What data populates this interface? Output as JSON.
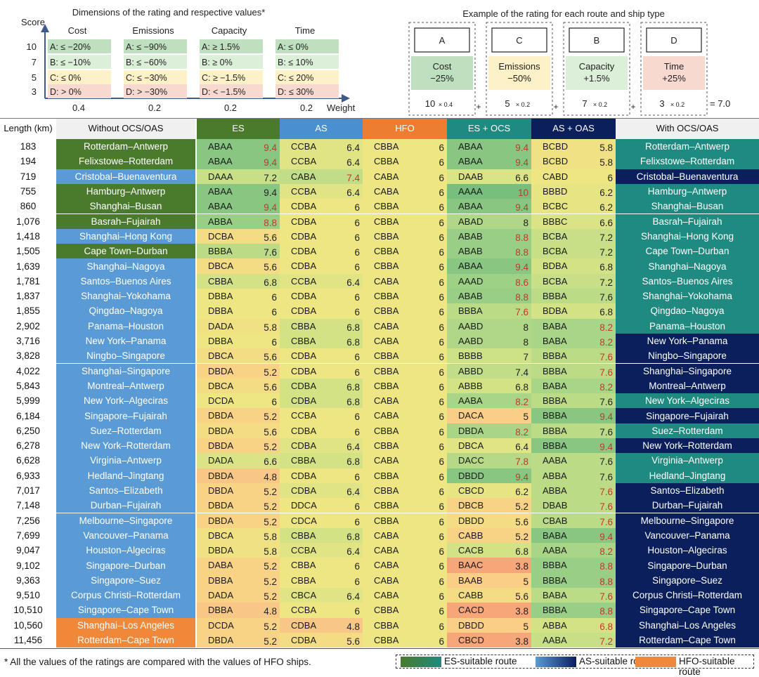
{
  "chart_data": {
    "type": "table",
    "top_left": {
      "title": "Dimensions of the rating and respective values*",
      "y_axis_label": "Score",
      "x_axis_label": "Weight",
      "scores": [
        "10",
        "7",
        "5",
        "3"
      ],
      "dimensions": [
        {
          "name": "Cost",
          "weight": "0.4",
          "grades": [
            "A: ≤ −20%",
            "B: ≤ −10%",
            "C: ≤ 0%",
            "D: > 0%"
          ]
        },
        {
          "name": "Emissions",
          "weight": "0.2",
          "grades": [
            "A: ≤ −90%",
            "B: ≤ −60%",
            "C: ≤ −30%",
            "D: > −30%"
          ]
        },
        {
          "name": "Capacity",
          "weight": "0.2",
          "grades": [
            "A: ≥ 1.5%",
            "B: ≥ 0%",
            "C: ≥ −1.5%",
            "D: < −1.5%"
          ]
        },
        {
          "name": "Time",
          "weight": "0.2",
          "grades": [
            "A: ≤ 0%",
            "B: ≤ 10%",
            "C: ≤ 20%",
            "D: ≤ 30%"
          ]
        }
      ]
    },
    "example": {
      "title": "Example of the rating for each route and ship type",
      "boxes": [
        {
          "grade": "A",
          "dim": "Cost",
          "value": "−25%",
          "score": "10",
          "weight": "× 0.4"
        },
        {
          "grade": "C",
          "dim": "Emissions",
          "value": "−50%",
          "score": "5",
          "weight": "× 0.2"
        },
        {
          "grade": "B",
          "dim": "Capacity",
          "value": "+1.5%",
          "score": "7",
          "weight": "× 0.2"
        },
        {
          "grade": "D",
          "dim": "Time",
          "value": "+25%",
          "score": "3",
          "weight": "× 0.2"
        }
      ],
      "plus": "+",
      "result": "= 7.0"
    },
    "columns": [
      "Length (km)",
      "Without OCS/OAS",
      "ES",
      "AS",
      "HFO",
      "ES + OCS",
      "AS + OAS",
      "With OCS/OAS"
    ],
    "rows": [
      {
        "len": "183",
        "route": "Rotterdam–Antwerp",
        "left": "ES",
        "right": "ES",
        "es": [
          "ABAA",
          "9.4"
        ],
        "as": [
          "CCBA",
          "6.4"
        ],
        "hfo": [
          "CBBA",
          "6"
        ],
        "esocs": [
          "ABAA",
          "9.4"
        ],
        "asoas": [
          "BCBD",
          "5.8"
        ]
      },
      {
        "len": "194",
        "route": "Felixstowe–Rotterdam",
        "left": "ES",
        "right": "ES",
        "es": [
          "ABAA",
          "9.4"
        ],
        "as": [
          "CCBA",
          "6.4"
        ],
        "hfo": [
          "CBBA",
          "6"
        ],
        "esocs": [
          "ABAA",
          "9.4"
        ],
        "asoas": [
          "BCBD",
          "5.8"
        ]
      },
      {
        "len": "719",
        "route": "Cristobal–Buenaventura",
        "left": "AS",
        "right": "AS",
        "es": [
          "DAAA",
          "7.2"
        ],
        "as": [
          "CABA",
          "7.4"
        ],
        "hfo": [
          "CABA",
          "6"
        ],
        "esocs": [
          "DAAB",
          "6.6"
        ],
        "asoas": [
          "CABD",
          "6"
        ]
      },
      {
        "len": "755",
        "route": "Hamburg–Antwerp",
        "left": "ES",
        "right": "ES",
        "es": [
          "ABAA",
          "9.4"
        ],
        "as": [
          "CCBA",
          "6.4"
        ],
        "hfo": [
          "CABA",
          "6"
        ],
        "esocs": [
          "AAAA",
          "10"
        ],
        "asoas": [
          "BBBD",
          "6.2"
        ]
      },
      {
        "len": "860",
        "route": "Shanghai–Busan",
        "left": "ES",
        "right": "ES",
        "es": [
          "ABAA",
          "9.4"
        ],
        "as": [
          "CDBA",
          "6"
        ],
        "hfo": [
          "CBBA",
          "6"
        ],
        "esocs": [
          "ABAA",
          "9.4"
        ],
        "asoas": [
          "BCBC",
          "6.2"
        ]
      },
      {
        "len": "1,076",
        "route": "Basrah–Fujairah",
        "left": "ES",
        "right": "ES",
        "es": [
          "ABBA",
          "8.8"
        ],
        "as": [
          "CDBA",
          "6"
        ],
        "hfo": [
          "CBBA",
          "6"
        ],
        "esocs": [
          "ABAD",
          "8"
        ],
        "asoas": [
          "BBBC",
          "6.6"
        ]
      },
      {
        "len": "1,418",
        "route": "Shanghai–Hong Kong",
        "left": "AS",
        "right": "ES",
        "es": [
          "DCBA",
          "5.6"
        ],
        "as": [
          "CDBA",
          "6"
        ],
        "hfo": [
          "CBBA",
          "6"
        ],
        "esocs": [
          "ABAB",
          "8.8"
        ],
        "asoas": [
          "BCBA",
          "7.2"
        ]
      },
      {
        "len": "1,505",
        "route": "Cape Town–Durban",
        "left": "ES",
        "right": "ES",
        "es": [
          "BBBA",
          "7.6"
        ],
        "as": [
          "CDBA",
          "6"
        ],
        "hfo": [
          "CBBA",
          "6"
        ],
        "esocs": [
          "ABAB",
          "8.8"
        ],
        "asoas": [
          "BCBA",
          "7.2"
        ]
      },
      {
        "len": "1,639",
        "route": "Shanghai–Nagoya",
        "left": "AS",
        "right": "ES",
        "es": [
          "DBCA",
          "5.6"
        ],
        "as": [
          "CDBA",
          "6"
        ],
        "hfo": [
          "CBBA",
          "6"
        ],
        "esocs": [
          "ABAA",
          "9.4"
        ],
        "asoas": [
          "BDBA",
          "6.8"
        ]
      },
      {
        "len": "1,781",
        "route": "Santos–Buenos Aires",
        "left": "AS",
        "right": "ES",
        "es": [
          "CBBA",
          "6.8"
        ],
        "as": [
          "CCBA",
          "6.4"
        ],
        "hfo": [
          "CABA",
          "6"
        ],
        "esocs": [
          "AAAD",
          "8.6"
        ],
        "asoas": [
          "BCBA",
          "7.2"
        ]
      },
      {
        "len": "1,837",
        "route": "Shanghai–Yokohama",
        "left": "AS",
        "right": "ES",
        "es": [
          "DBBA",
          "6"
        ],
        "as": [
          "CDBA",
          "6"
        ],
        "hfo": [
          "CBBA",
          "6"
        ],
        "esocs": [
          "ABAB",
          "8.8"
        ],
        "asoas": [
          "BBBA",
          "7.6"
        ]
      },
      {
        "len": "1,855",
        "route": "Qingdao–Nagoya",
        "left": "AS",
        "right": "ES",
        "es": [
          "DBBA",
          "6"
        ],
        "as": [
          "CDBA",
          "6"
        ],
        "hfo": [
          "CBBA",
          "6"
        ],
        "esocs": [
          "BBBA",
          "7.6"
        ],
        "asoas": [
          "BDBA",
          "6.8"
        ]
      },
      {
        "len": "2,902",
        "route": "Panama–Houston",
        "left": "AS",
        "right": "ES",
        "es": [
          "DADA",
          "5.8"
        ],
        "as": [
          "CBBA",
          "6.8"
        ],
        "hfo": [
          "CABA",
          "6"
        ],
        "esocs": [
          "AABD",
          "8"
        ],
        "asoas": [
          "BABA",
          "8.2"
        ]
      },
      {
        "len": "3,716",
        "route": "New York–Panama",
        "left": "AS",
        "right": "AS",
        "es": [
          "DBBA",
          "6"
        ],
        "as": [
          "CBBA",
          "6.8"
        ],
        "hfo": [
          "CABA",
          "6"
        ],
        "esocs": [
          "AABD",
          "8"
        ],
        "asoas": [
          "BABA",
          "8.2"
        ]
      },
      {
        "len": "3,828",
        "route": "Ningbo–Singapore",
        "left": "AS",
        "right": "AS",
        "es": [
          "DBCA",
          "5.6"
        ],
        "as": [
          "CDBA",
          "6"
        ],
        "hfo": [
          "CBBA",
          "6"
        ],
        "esocs": [
          "BBBB",
          "7"
        ],
        "asoas": [
          "BBBA",
          "7.6"
        ]
      },
      {
        "len": "4,022",
        "route": "Shanghai–Singapore",
        "left": "AS",
        "right": "AS",
        "es": [
          "DBDA",
          "5.2"
        ],
        "as": [
          "CDBA",
          "6"
        ],
        "hfo": [
          "CBBA",
          "6"
        ],
        "esocs": [
          "ABBD",
          "7.4"
        ],
        "asoas": [
          "BBBA",
          "7.6"
        ]
      },
      {
        "len": "5,843",
        "route": "Montreal–Antwerp",
        "left": "AS",
        "right": "AS",
        "es": [
          "DBCA",
          "5.6"
        ],
        "as": [
          "CDBA",
          "6.8"
        ],
        "hfo": [
          "CBBA",
          "6"
        ],
        "esocs": [
          "ABBB",
          "6.8"
        ],
        "asoas": [
          "BABA",
          "8.2"
        ]
      },
      {
        "len": "5,999",
        "route": "New York–Algeciras",
        "left": "AS",
        "right": "ES",
        "es": [
          "DCDA",
          "6"
        ],
        "as": [
          "CDBA",
          "6.8"
        ],
        "hfo": [
          "CABA",
          "6"
        ],
        "esocs": [
          "AABA",
          "8.2"
        ],
        "asoas": [
          "BBBA",
          "7.6"
        ]
      },
      {
        "len": "6,184",
        "route": "Singapore–Fujairah",
        "left": "AS",
        "right": "AS",
        "es": [
          "DBDA",
          "5.2"
        ],
        "as": [
          "CCBA",
          "6"
        ],
        "hfo": [
          "CABA",
          "6"
        ],
        "esocs": [
          "DACA",
          "5"
        ],
        "asoas": [
          "BBBA",
          "9.4"
        ]
      },
      {
        "len": "6,250",
        "route": "Suez–Rotterdam",
        "left": "AS",
        "right": "ES",
        "es": [
          "DBDA",
          "5.6"
        ],
        "as": [
          "CDBA",
          "6"
        ],
        "hfo": [
          "CBBA",
          "6"
        ],
        "esocs": [
          "DBDA",
          "8.2"
        ],
        "asoas": [
          "BBBA",
          "7.6"
        ]
      },
      {
        "len": "6,278",
        "route": "New York–Rotterdam",
        "left": "AS",
        "right": "AS",
        "es": [
          "DBDA",
          "5.2"
        ],
        "as": [
          "CDBA",
          "6.4"
        ],
        "hfo": [
          "CBBA",
          "6"
        ],
        "esocs": [
          "DBCA",
          "6.4"
        ],
        "asoas": [
          "BBBA",
          "9.4"
        ]
      },
      {
        "len": "6,628",
        "route": "Virginia–Antwerp",
        "left": "AS",
        "right": "ES",
        "es": [
          "DADA",
          "6.6"
        ],
        "as": [
          "CBBA",
          "6.8"
        ],
        "hfo": [
          "CABA",
          "6"
        ],
        "esocs": [
          "DACC",
          "7.8"
        ],
        "asoas": [
          "AABA",
          "7.6"
        ]
      },
      {
        "len": "6,933",
        "route": "Hedland–Jingtang",
        "left": "AS",
        "right": "ES",
        "es": [
          "DBDA",
          "4.8"
        ],
        "as": [
          "CDBA",
          "6"
        ],
        "hfo": [
          "CBBA",
          "6"
        ],
        "esocs": [
          "DBDD",
          "9.4"
        ],
        "asoas": [
          "ABBA",
          "7.6"
        ]
      },
      {
        "len": "7,017",
        "route": "Santos–Elizabeth",
        "left": "AS",
        "right": "AS",
        "es": [
          "DBDA",
          "5.2"
        ],
        "as": [
          "CDBA",
          "6.4"
        ],
        "hfo": [
          "CBBA",
          "6"
        ],
        "esocs": [
          "CBCD",
          "6.2"
        ],
        "asoas": [
          "ABBA",
          "7.6"
        ]
      },
      {
        "len": "7,148",
        "route": "Durban–Fujairah",
        "left": "AS",
        "right": "AS",
        "es": [
          "DBDA",
          "5.2"
        ],
        "as": [
          "DDCA",
          "6"
        ],
        "hfo": [
          "CBBA",
          "6"
        ],
        "esocs": [
          "DBCB",
          "5.2"
        ],
        "asoas": [
          "DBAB",
          "7.6"
        ]
      },
      {
        "len": "7,256",
        "route": "Melbourne–Singapore",
        "left": "AS",
        "right": "AS",
        "es": [
          "DBDA",
          "5.2"
        ],
        "as": [
          "CDCA",
          "6"
        ],
        "hfo": [
          "CBBA",
          "6"
        ],
        "esocs": [
          "DBDD",
          "5.6"
        ],
        "asoas": [
          "CBAB",
          "7.6"
        ]
      },
      {
        "len": "7,699",
        "route": "Vancouver–Panama",
        "left": "AS",
        "right": "AS",
        "es": [
          "DBCA",
          "5.8"
        ],
        "as": [
          "CBBA",
          "6.8"
        ],
        "hfo": [
          "CABA",
          "6"
        ],
        "esocs": [
          "CABB",
          "5.2"
        ],
        "asoas": [
          "BABA",
          "9.4"
        ]
      },
      {
        "len": "9,047",
        "route": "Houston–Algeciras",
        "left": "AS",
        "right": "AS",
        "es": [
          "DBDA",
          "5.8"
        ],
        "as": [
          "CCBA",
          "6.4"
        ],
        "hfo": [
          "CABA",
          "6"
        ],
        "esocs": [
          "CACB",
          "6.8"
        ],
        "asoas": [
          "AABA",
          "8.2"
        ]
      },
      {
        "len": "9,102",
        "route": "Singapore–Durban",
        "left": "AS",
        "right": "AS",
        "es": [
          "DABA",
          "5.2"
        ],
        "as": [
          "CBBA",
          "6"
        ],
        "hfo": [
          "CABA",
          "6"
        ],
        "esocs": [
          "BAAC",
          "3.8"
        ],
        "asoas": [
          "BBBA",
          "8.8"
        ]
      },
      {
        "len": "9,363",
        "route": "Singapore–Suez",
        "left": "AS",
        "right": "AS",
        "es": [
          "DBBA",
          "5.2"
        ],
        "as": [
          "CBBA",
          "6"
        ],
        "hfo": [
          "CABA",
          "6"
        ],
        "esocs": [
          "BAAB",
          "5"
        ],
        "asoas": [
          "BBBA",
          "8.8"
        ]
      },
      {
        "len": "9,510",
        "route": "Corpus Christi–Rotterdam",
        "left": "AS",
        "right": "AS",
        "es": [
          "DADA",
          "5.2"
        ],
        "as": [
          "CBCA",
          "6.4"
        ],
        "hfo": [
          "CABA",
          "6"
        ],
        "esocs": [
          "CABB",
          "5.6"
        ],
        "asoas": [
          "BABA",
          "7.6"
        ]
      },
      {
        "len": "10,510",
        "route": "Singapore–Cape Town",
        "left": "AS",
        "right": "AS",
        "es": [
          "DBBA",
          "4.8"
        ],
        "as": [
          "CCBA",
          "6"
        ],
        "hfo": [
          "CBBA",
          "6"
        ],
        "esocs": [
          "CACD",
          "3.8"
        ],
        "asoas": [
          "BBBA",
          "8.8"
        ]
      },
      {
        "len": "10,560",
        "route": "Shanghai–Los Angeles",
        "left": "HFO",
        "right": "AS",
        "es": [
          "DCDA",
          "5.2"
        ],
        "as": [
          "CDBA",
          "4.8"
        ],
        "hfo": [
          "CBBA",
          "6"
        ],
        "esocs": [
          "DBDD",
          "5"
        ],
        "asoas": [
          "ABBA",
          "6.8"
        ]
      },
      {
        "len": "11,456",
        "route": "Rotterdam–Cape Town",
        "left": "HFO",
        "right": "AS",
        "es": [
          "DBDA",
          "5.2"
        ],
        "as": [
          "CDBA",
          "5.6"
        ],
        "hfo": [
          "CBBA",
          "6"
        ],
        "esocs": [
          "CBCD",
          "3.8"
        ],
        "asoas": [
          "AABA",
          "7.2"
        ]
      }
    ],
    "footnote": "* All the values of the ratings are compared with the values of HFO ships.",
    "legend": [
      "ES-suitable route",
      "AS-suitable route",
      "HFO-suitable route"
    ],
    "colors": {
      "es_dark": "#4a7a2c",
      "as_blue": "#5b9bd5",
      "hfo_orange": "#f0883a",
      "es_teal": "#1f8a80",
      "as_navy": "#0a1f5c",
      "hdr_es": "#4a7a2c",
      "hdr_as": "#4a8fd0",
      "hdr_hfo": "#ed7d31",
      "hdr_esocs": "#1f8a80",
      "hdr_asoas": "#0a1f5c",
      "grade_a": "#bfe0bf",
      "grade_b": "#dcefd9",
      "grade_c": "#fdf1c7",
      "grade_d": "#f8d9d0",
      "highlight": "#c0392b"
    }
  }
}
